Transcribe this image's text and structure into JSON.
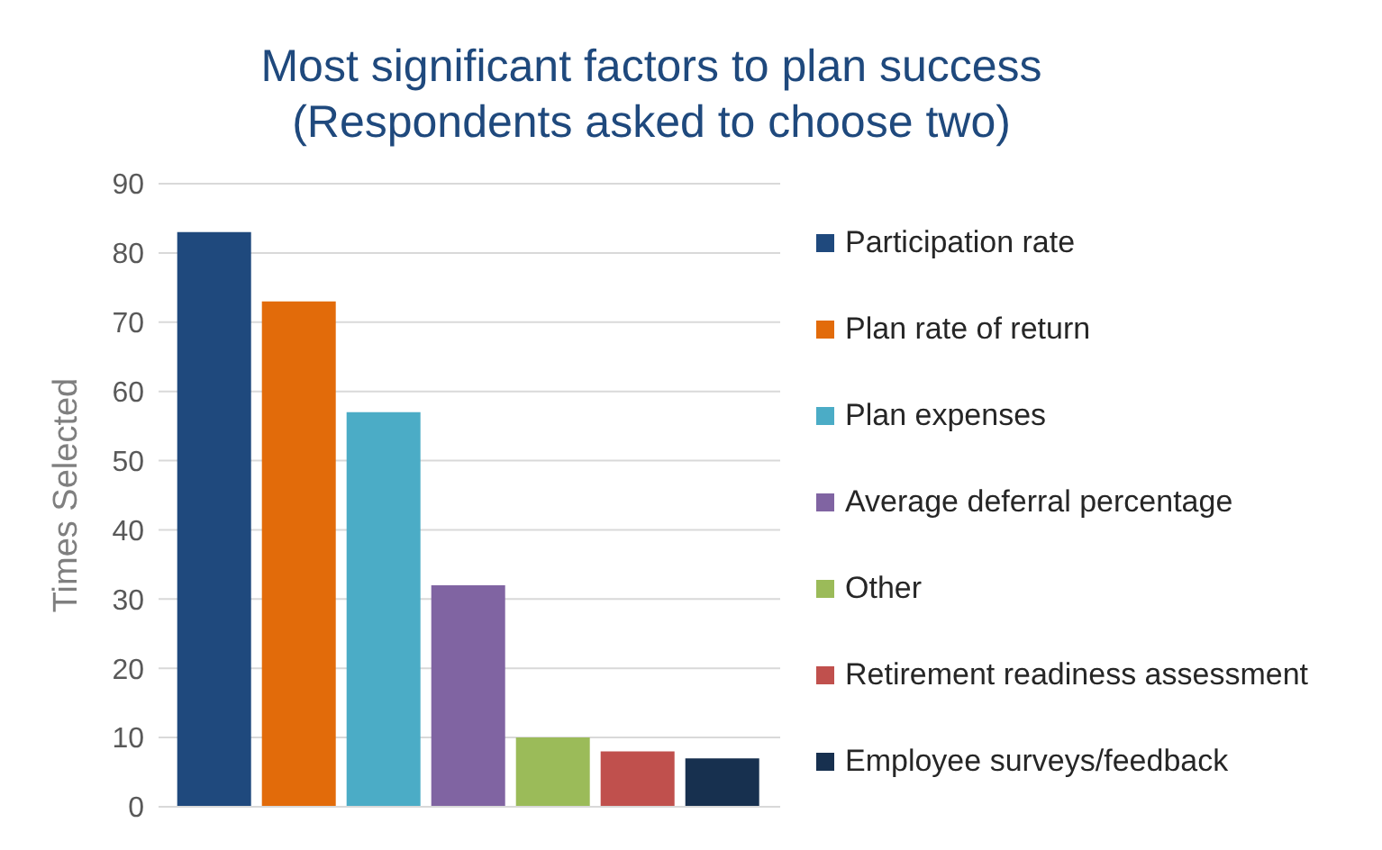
{
  "chart_data": {
    "type": "bar",
    "title": "Most significant factors to plan success\n(Respondents asked to choose two)",
    "ylabel": "Times Selected",
    "categories": [
      null
    ],
    "series": [
      {
        "name": "Participation rate",
        "color": "#1f497d",
        "values": [
          83
        ]
      },
      {
        "name": "Plan rate of return",
        "color": "#e26b0a",
        "values": [
          73
        ]
      },
      {
        "name": "Plan expenses",
        "color": "#4bacc6",
        "values": [
          57
        ]
      },
      {
        "name": "Average deferral percentage",
        "color": "#8064a2",
        "values": [
          32
        ]
      },
      {
        "name": "Other",
        "color": "#9bbb59",
        "values": [
          10
        ]
      },
      {
        "name": "Retirement readiness assessment",
        "color": "#c0504d",
        "values": [
          8
        ]
      },
      {
        "name": "Employee surveys/feedback",
        "color": "#17304f",
        "values": [
          7
        ]
      }
    ],
    "ylim": [
      0,
      90
    ],
    "yticks": [
      0,
      10,
      20,
      30,
      40,
      50,
      60,
      70,
      80,
      90
    ],
    "grid": "y",
    "legend": "right"
  }
}
